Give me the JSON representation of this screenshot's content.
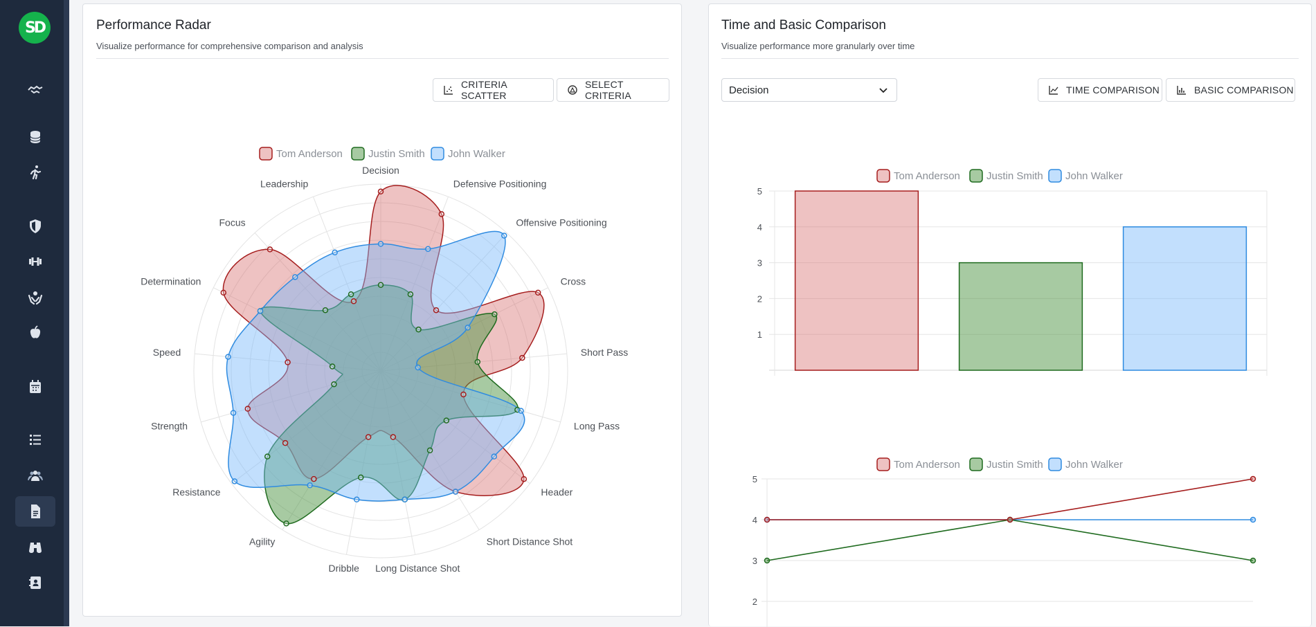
{
  "sidebar": {
    "logo_text": "SD",
    "items": [
      {
        "icon": "handshake-icon",
        "active": false
      },
      {
        "icon": "database-icon",
        "active": false
      },
      {
        "icon": "running-icon",
        "active": false
      },
      {
        "icon": "shield-icon",
        "active": false
      },
      {
        "icon": "dumbbell-icon",
        "active": false
      },
      {
        "icon": "hands-care-icon",
        "active": false
      },
      {
        "icon": "apple-icon",
        "active": false
      },
      {
        "icon": "calendar-icon",
        "active": false
      },
      {
        "icon": "list-icon",
        "active": false
      },
      {
        "icon": "users-icon",
        "active": false
      },
      {
        "icon": "report-icon",
        "active": true
      },
      {
        "icon": "binoculars-icon",
        "active": false
      },
      {
        "icon": "contact-card-icon",
        "active": false
      }
    ]
  },
  "radar_card": {
    "title": "Performance Radar",
    "subtitle": "Visualize performance for comprehensive comparison and analysis",
    "criteria_scatter_label": "CRITERIA SCATTER",
    "select_criteria_label": "SELECT CRITERIA"
  },
  "compare_card": {
    "title": "Time and Basic Comparison",
    "subtitle": "Visualize performance more granularly over time",
    "select_value": "Decision",
    "time_comparison_label": "TIME COMPARISON",
    "basic_comparison_label": "BASIC COMPARISON"
  },
  "colors": {
    "tom_stroke": "#a51d1d",
    "tom_fill": "rgba(214,110,110,0.42)",
    "justin_stroke": "#1f6b1f",
    "justin_fill": "rgba(80,150,70,0.5)",
    "john_stroke": "#2f8be0",
    "john_fill": "rgba(120,185,250,0.45)"
  },
  "chart_data": [
    {
      "type": "radar",
      "legend": [
        "Tom Anderson",
        "Justin Smith",
        "John Walker"
      ],
      "axes": [
        "Decision",
        "Defensive Positioning",
        "Offensive Positioning",
        "Cross",
        "Short Pass",
        "Long Pass",
        "Header",
        "Short Distance Shot",
        "Long Distance Shot",
        "Dribble",
        "Agility",
        "Resistance",
        "Strength",
        "Speed",
        "Determination",
        "Focus",
        "Leadership"
      ],
      "range": [
        0,
        5
      ],
      "series": [
        {
          "name": "Tom Anderson",
          "values": [
            4.8,
            4.5,
            2.2,
            4.7,
            3.8,
            2.3,
            4.8,
            3.8,
            1.8,
            1.8,
            3.4,
            3.2,
            3.7,
            2.5,
            4.7,
            4.4,
            2.0
          ]
        },
        {
          "name": "Justin Smith",
          "values": [
            2.3,
            2.2,
            1.5,
            3.4,
            2.6,
            3.8,
            2.2,
            2.5,
            3.5,
            2.9,
            4.8,
            3.8,
            1.3,
            1.3,
            3.6,
            2.2,
            2.2
          ]
        },
        {
          "name": "John Walker",
          "values": [
            3.4,
            3.5,
            4.9,
            2.6,
            1.0,
            3.9,
            3.8,
            3.8,
            3.5,
            3.5,
            3.6,
            4.9,
            4.1,
            4.1,
            3.6,
            3.4,
            3.4
          ]
        }
      ]
    },
    {
      "type": "bar",
      "legend": [
        "Tom Anderson",
        "Justin Smith",
        "John Walker"
      ],
      "categories": [
        "Tom Anderson",
        "Justin Smith",
        "John Walker"
      ],
      "values": [
        5,
        3,
        4
      ],
      "yticks": [
        1,
        2,
        3,
        4,
        5
      ],
      "ylim": [
        0,
        5
      ]
    },
    {
      "type": "line",
      "legend": [
        "Tom Anderson",
        "Justin Smith",
        "John Walker"
      ],
      "x": [
        0,
        1,
        2
      ],
      "yticks": [
        2,
        3,
        4,
        5
      ],
      "series": [
        {
          "name": "Tom Anderson",
          "values": [
            4,
            4,
            5
          ]
        },
        {
          "name": "Justin Smith",
          "values": [
            3,
            4,
            3
          ]
        },
        {
          "name": "John Walker",
          "values": [
            4,
            4,
            4
          ]
        }
      ]
    }
  ]
}
